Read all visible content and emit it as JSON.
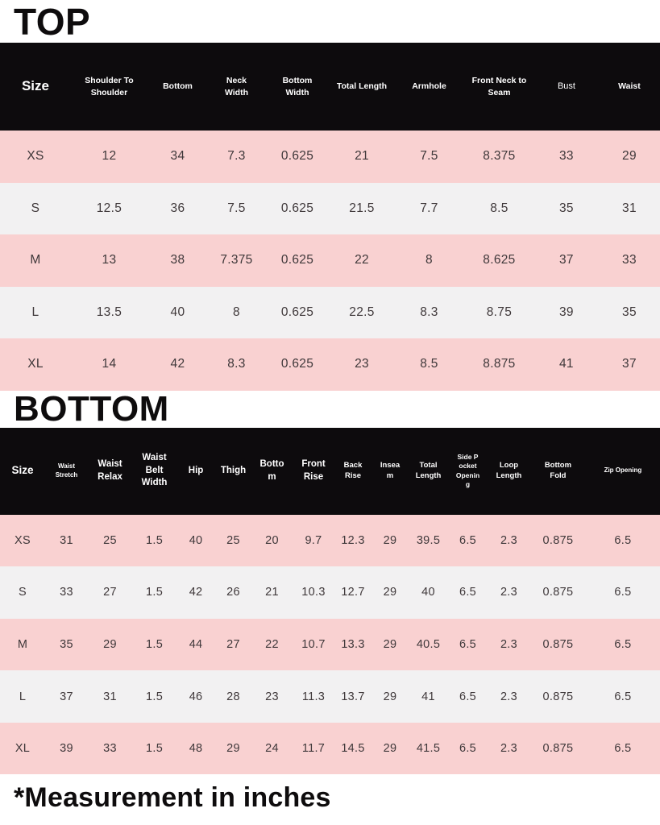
{
  "colors": {
    "header_bg": "#0d0b0d",
    "row_pink": "#f9d1d1",
    "row_alt": "#f2f1f2",
    "cell_text": "#3f383a",
    "title_text": "#0e0c0d",
    "header_text": "#ffffff"
  },
  "top": {
    "title": "TOP",
    "headers": [
      "Size",
      "Shoulder To Shoulder",
      "Bottom",
      "Neck Width",
      "Bottom Width",
      "Total Length",
      "Armhole",
      "Front Neck to Seam",
      "Bust",
      "Waist"
    ],
    "rows": [
      {
        "size": "XS",
        "values": [
          "12",
          "34",
          "7.3",
          "0.625",
          "21",
          "7.5",
          "8.375",
          "33",
          "29"
        ]
      },
      {
        "size": "S",
        "values": [
          "12.5",
          "36",
          "7.5",
          "0.625",
          "21.5",
          "7.7",
          "8.5",
          "35",
          "31"
        ]
      },
      {
        "size": "M",
        "values": [
          "13",
          "38",
          "7.375",
          "0.625",
          "22",
          "8",
          "8.625",
          "37",
          "33"
        ]
      },
      {
        "size": "L",
        "values": [
          "13.5",
          "40",
          "8",
          "0.625",
          "22.5",
          "8.3",
          "8.75",
          "39",
          "35"
        ]
      },
      {
        "size": "XL",
        "values": [
          "14",
          "42",
          "8.3",
          "0.625",
          "23",
          "8.5",
          "8.875",
          "41",
          "37"
        ]
      }
    ]
  },
  "bottom": {
    "title": "BOTTOM",
    "headers": [
      "Size",
      "Waist Stretch",
      "Waist Relax",
      "Waist Belt Width",
      "Hip",
      "Thigh",
      "Bottom",
      "Front Rise",
      "Back Rise",
      "Inseam",
      "Total Length",
      "Side Pocket Opening",
      "Loop Length",
      "Bottom Fold",
      "Zip Opening"
    ],
    "rows": [
      {
        "size": "XS",
        "values": [
          "31",
          "25",
          "1.5",
          "40",
          "25",
          "20",
          "9.7",
          "12.3",
          "29",
          "39.5",
          "6.5",
          "2.3",
          "0.875",
          "6.5"
        ]
      },
      {
        "size": "S",
        "values": [
          "33",
          "27",
          "1.5",
          "42",
          "26",
          "21",
          "10.3",
          "12.7",
          "29",
          "40",
          "6.5",
          "2.3",
          "0.875",
          "6.5"
        ]
      },
      {
        "size": "M",
        "values": [
          "35",
          "29",
          "1.5",
          "44",
          "27",
          "22",
          "10.7",
          "13.3",
          "29",
          "40.5",
          "6.5",
          "2.3",
          "0.875",
          "6.5"
        ]
      },
      {
        "size": "L",
        "values": [
          "37",
          "31",
          "1.5",
          "46",
          "28",
          "23",
          "11.3",
          "13.7",
          "29",
          "41",
          "6.5",
          "2.3",
          "0.875",
          "6.5"
        ]
      },
      {
        "size": "XL",
        "values": [
          "39",
          "33",
          "1.5",
          "48",
          "29",
          "24",
          "11.7",
          "14.5",
          "29",
          "41.5",
          "6.5",
          "2.3",
          "0.875",
          "6.5"
        ]
      }
    ]
  },
  "footer": {
    "note": "*Measurement in inches"
  }
}
